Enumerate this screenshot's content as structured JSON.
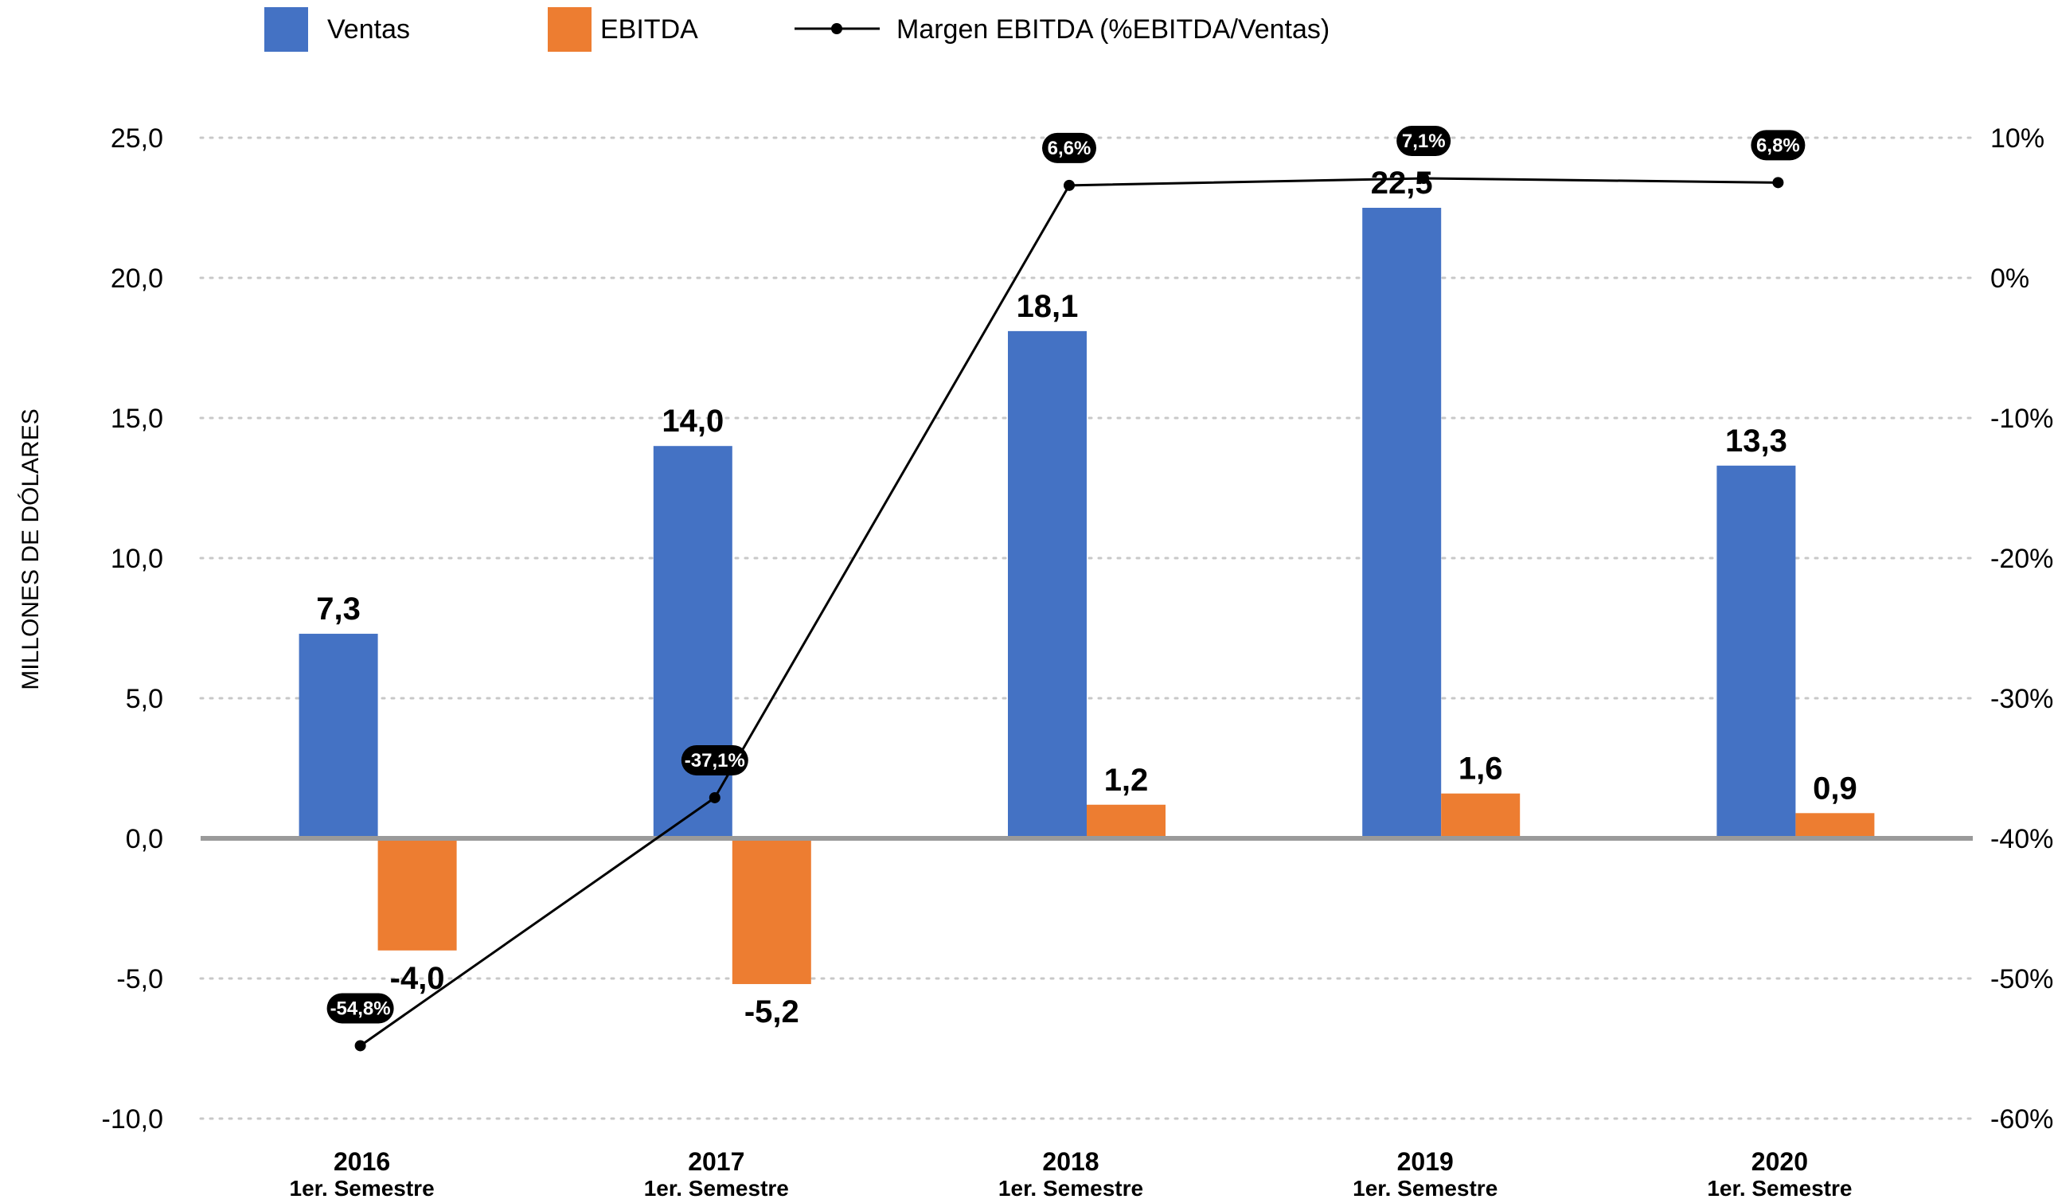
{
  "chart_data": {
    "type": "bar",
    "categories": [
      "2016",
      "2017",
      "2018",
      "2019",
      "2020"
    ],
    "category_sublabels": [
      "1er. Semestre",
      "1er. Semestre",
      "1er. Semestre",
      "1er. Semestre",
      "1er. Semestre"
    ],
    "series": [
      {
        "name": "Ventas",
        "type": "bar",
        "axis": "left",
        "color": "#4472C4",
        "values": [
          7.3,
          14.0,
          18.1,
          22.5,
          13.3
        ],
        "labels": [
          "7,3",
          "14,0",
          "18,1",
          "22,5",
          "13,3"
        ]
      },
      {
        "name": "EBITDA",
        "type": "bar",
        "axis": "left",
        "color": "#ED7D31",
        "values": [
          -4.0,
          -5.2,
          1.2,
          1.6,
          0.9
        ],
        "labels": [
          "-4,0",
          "-5,2",
          "1,2",
          "1,6",
          "0,9"
        ]
      },
      {
        "name": "Margen EBITDA (%EBITDA/Ventas)",
        "type": "line",
        "axis": "right",
        "color": "#000000",
        "values": [
          -54.8,
          -37.1,
          6.6,
          7.1,
          6.8
        ],
        "labels": [
          "-54,8%",
          "-37,1%",
          "6,6%",
          "7,1%",
          "6,8%"
        ]
      }
    ],
    "ylabel": "MILLONES DE DÓLARES",
    "ylim": [
      -10,
      25
    ],
    "y_ticks": [
      "-10,0",
      "-5,0",
      "0,0",
      "5,0",
      "10,0",
      "15,0",
      "20,0",
      "25,0"
    ],
    "y2lim": [
      -60,
      10
    ],
    "y2_ticks": [
      "-60%",
      "-50%",
      "-40%",
      "-30%",
      "-20%",
      "-10%",
      "0%",
      "10%"
    ],
    "grid": "dotted horizontal",
    "legend": "top"
  }
}
